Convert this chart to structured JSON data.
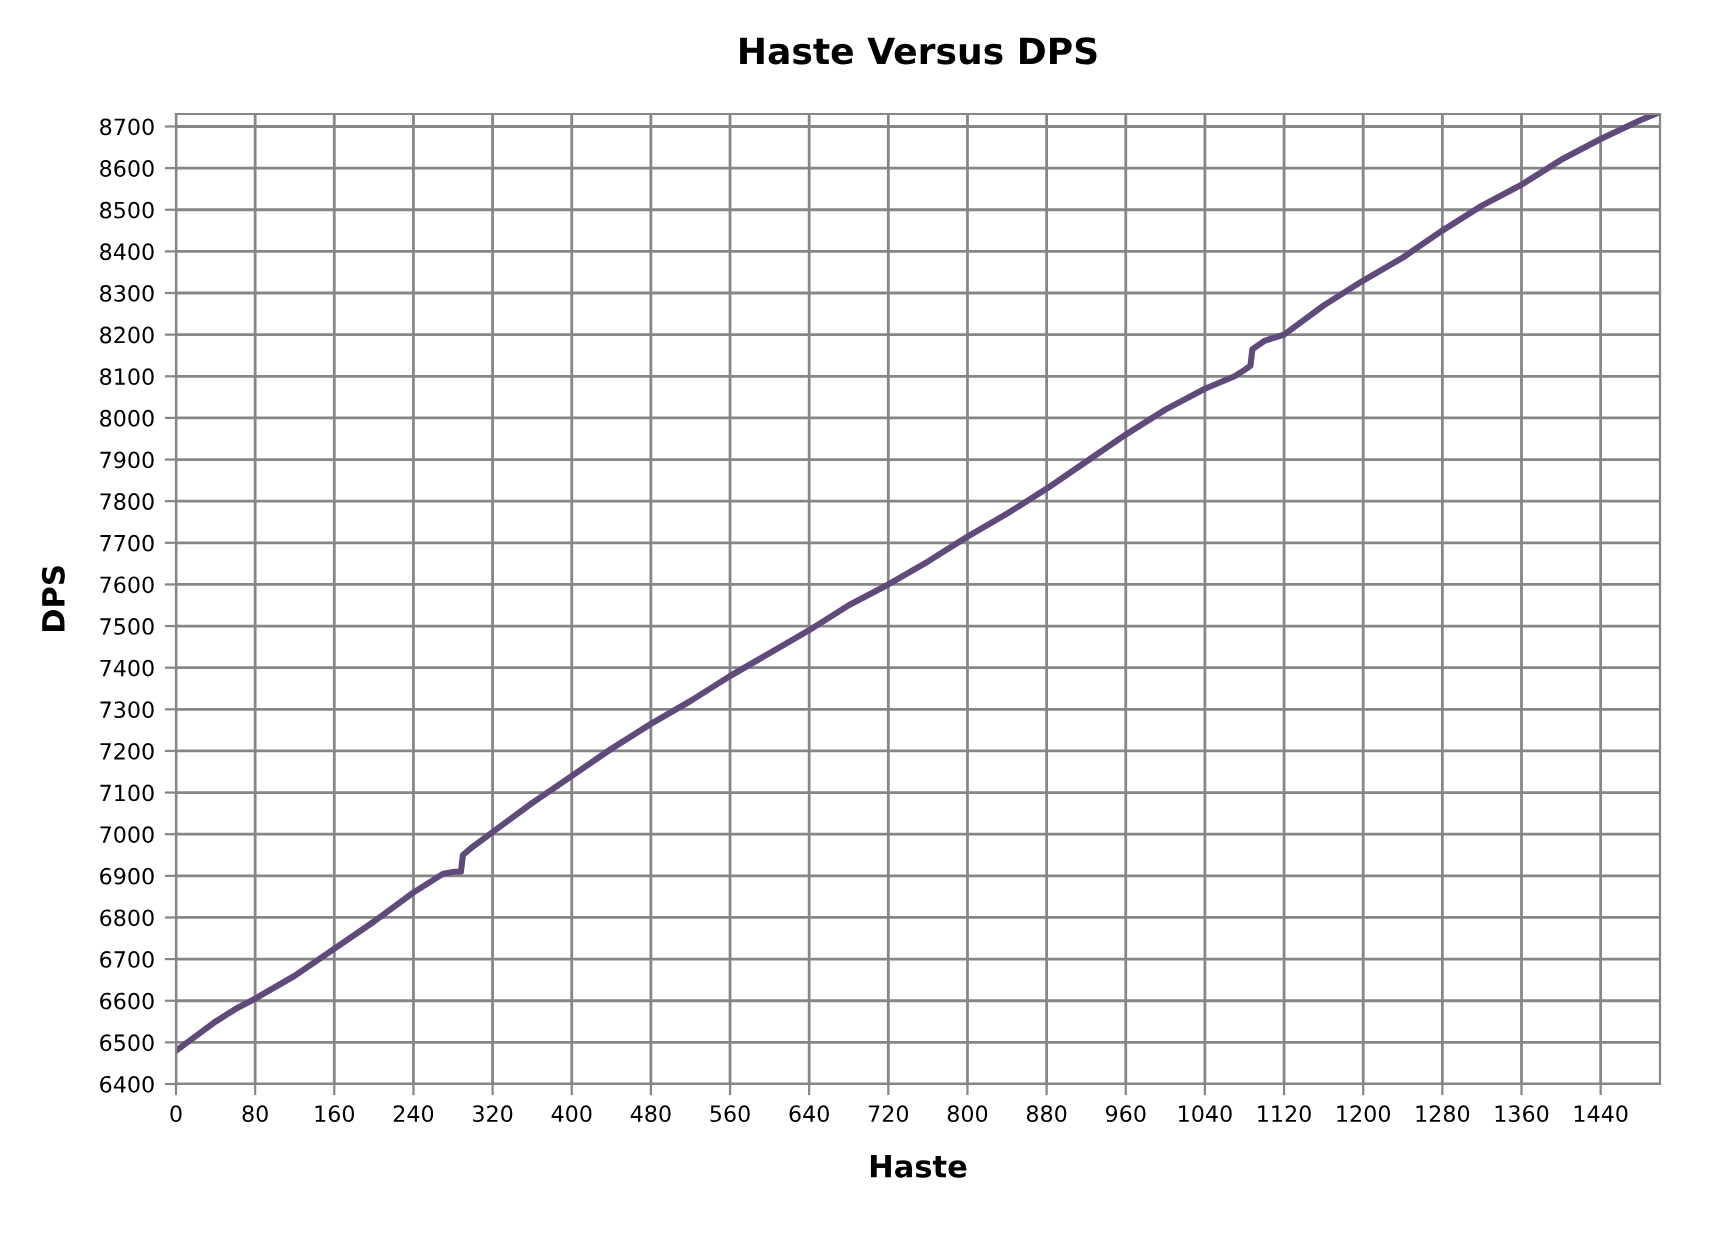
{
  "chart_data": {
    "type": "line",
    "title": "Haste Versus DPS",
    "xlabel": "Haste",
    "ylabel": "DPS",
    "x": [
      0,
      20,
      40,
      60,
      80,
      120,
      160,
      200,
      240,
      270,
      282,
      288,
      290,
      300,
      320,
      360,
      400,
      440,
      480,
      520,
      560,
      600,
      640,
      680,
      720,
      760,
      800,
      840,
      880,
      920,
      960,
      1000,
      1040,
      1070,
      1080,
      1086,
      1088,
      1100,
      1120,
      1160,
      1200,
      1240,
      1280,
      1320,
      1360,
      1400,
      1440,
      1480,
      1495
    ],
    "series": [
      {
        "color": "#604a7b",
        "values": [
          6480,
          6515,
          6550,
          6580,
          6605,
          6660,
          6725,
          6790,
          6860,
          6905,
          6910,
          6910,
          6950,
          6970,
          7005,
          7075,
          7140,
          7205,
          7265,
          7320,
          7380,
          7435,
          7490,
          7550,
          7600,
          7655,
          7715,
          7770,
          7830,
          7895,
          7960,
          8020,
          8070,
          8100,
          8115,
          8125,
          8165,
          8185,
          8200,
          8270,
          8330,
          8385,
          8450,
          8510,
          8560,
          8620,
          8670,
          8715,
          8730
        ]
      }
    ],
    "xlim": [
      0,
      1500
    ],
    "ylim": [
      6400,
      8730
    ],
    "xticks": [
      0,
      80,
      160,
      240,
      320,
      400,
      480,
      560,
      640,
      720,
      800,
      880,
      960,
      1040,
      1120,
      1200,
      1280,
      1360,
      1440
    ],
    "yticks": [
      6400,
      6500,
      6600,
      6700,
      6800,
      6900,
      7000,
      7100,
      7200,
      7300,
      7400,
      7500,
      7600,
      7700,
      7800,
      7900,
      8000,
      8100,
      8200,
      8300,
      8400,
      8500,
      8600,
      8700
    ],
    "grid": true,
    "marker": "none",
    "line_style": "solid",
    "legend": false
  }
}
